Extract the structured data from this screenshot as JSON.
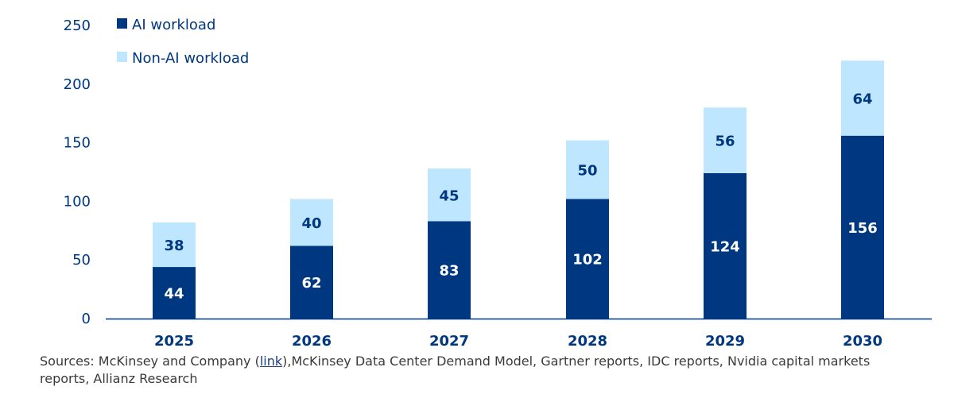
{
  "chart_data": {
    "type": "bar",
    "stacked": true,
    "categories": [
      "2025",
      "2026",
      "2027",
      "2028",
      "2029",
      "2030"
    ],
    "series": [
      {
        "name": "AI workload",
        "values": [
          44,
          62,
          83,
          102,
          124,
          156
        ]
      },
      {
        "name": "Non-AI workload",
        "values": [
          38,
          40,
          45,
          50,
          56,
          64
        ]
      }
    ],
    "y_ticks": [
      "0",
      "50",
      "100",
      "150",
      "200",
      "250"
    ],
    "ylim": [
      0,
      250
    ],
    "grid": false,
    "legend_position": "top-left",
    "colors": {
      "ai": "#003781",
      "non_ai": "#bfe6ff",
      "axis_text": "#003781"
    }
  },
  "sources": {
    "prefix": "Sources: McKinsey and Company (",
    "link_text": "link",
    "suffix": "),McKinsey Data Center Demand Model, Gartner reports, IDC reports, Nvidia capital markets reports, Allianz Research"
  }
}
